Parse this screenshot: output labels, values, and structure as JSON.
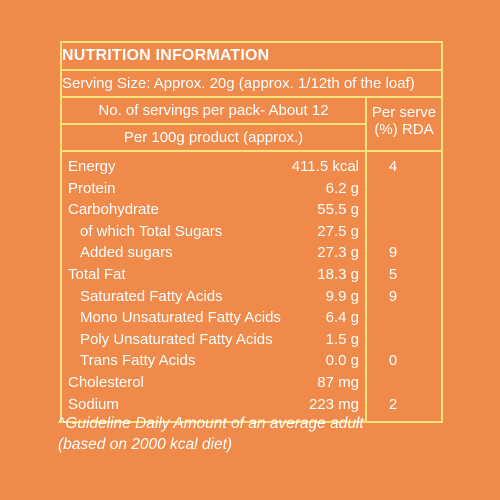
{
  "panel": {
    "title": "NUTRITION INFORMATION",
    "serving_size": "Serving Size: Approx. 20g (approx. 1/12th of the loaf)",
    "servings_per_pack": "No. of servings per pack- About 12",
    "per_100g": "Per 100g product (approx.)",
    "per_serve_line1": "Per serve",
    "per_serve_line2": "(%) RDA",
    "rows": [
      {
        "name": "Energy",
        "value": "411.5 kcal",
        "rda": "4",
        "indent": 0
      },
      {
        "name": "Protein",
        "value": "6.2 g",
        "rda": "",
        "indent": 0
      },
      {
        "name": "Carbohydrate",
        "value": "55.5 g",
        "rda": "",
        "indent": 0
      },
      {
        "name": "of which Total Sugars",
        "value": "27.5 g",
        "rda": "",
        "indent": 1
      },
      {
        "name": "Added sugars",
        "value": "27.3 g",
        "rda": "9",
        "indent": 1
      },
      {
        "name": "Total Fat",
        "value": "18.3 g",
        "rda": "5",
        "indent": 0
      },
      {
        "name": "Saturated Fatty Acids",
        "value": "9.9 g",
        "rda": "9",
        "indent": 1
      },
      {
        "name": "Mono Unsaturated Fatty Acids",
        "value": "6.4 g",
        "rda": "",
        "indent": 1
      },
      {
        "name": "Poly Unsaturated Fatty Acids",
        "value": "1.5 g",
        "rda": "",
        "indent": 1
      },
      {
        "name": "Trans Fatty Acids",
        "value": "0.0 g",
        "rda": "0",
        "indent": 1
      },
      {
        "name": "Cholesterol",
        "value": "87 mg",
        "rda": "",
        "indent": 0
      },
      {
        "name": "Sodium",
        "value": "223 mg",
        "rda": "2",
        "indent": 0
      }
    ]
  },
  "footnote": {
    "line1": "^Guideline Daily Amount of an average adult",
    "line2": " (based on 2000 kcal diet)"
  },
  "colors": {
    "background": "#f08a4b",
    "border": "#f5e27a",
    "text": "#ffffff"
  }
}
